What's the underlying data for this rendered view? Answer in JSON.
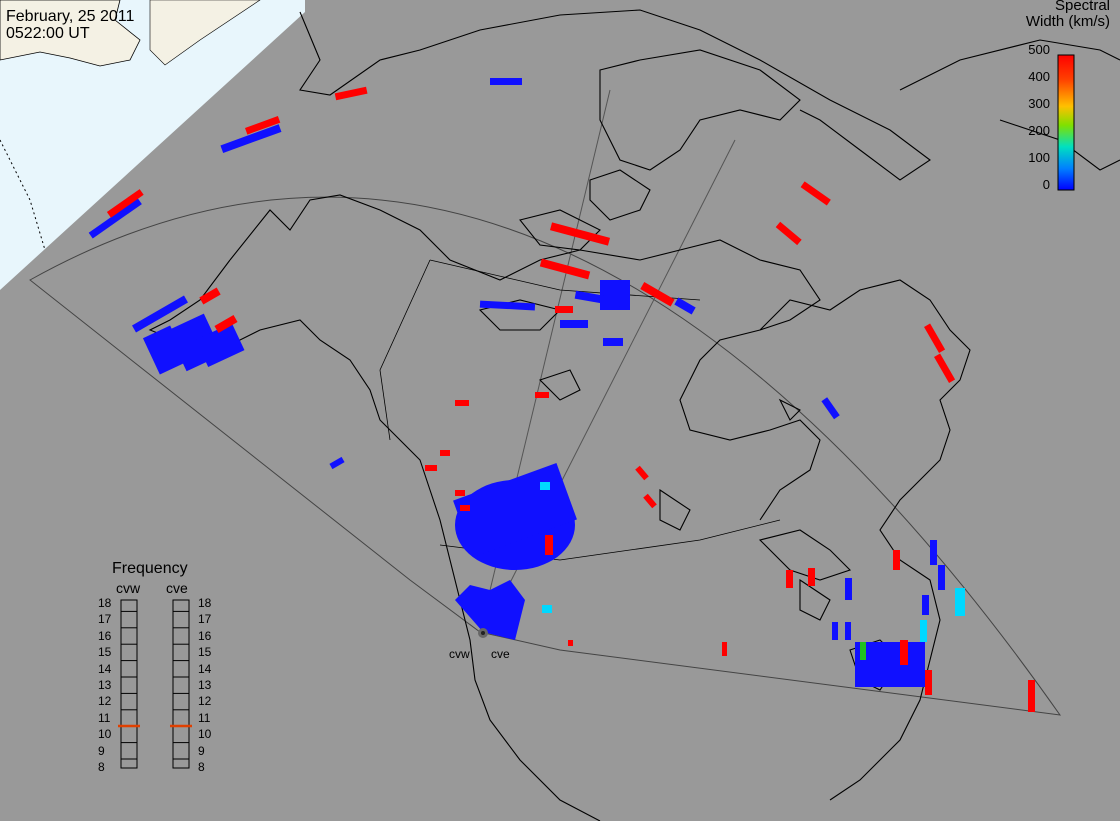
{
  "header": {
    "date": "February, 25 2011",
    "time": "0522:00 UT"
  },
  "colorbar": {
    "title_line1": "Spectral",
    "title_line2": "Width (km/s)",
    "ticks": [
      "500",
      "400",
      "300",
      "200",
      "100",
      "0"
    ],
    "colors": [
      "#ff0000",
      "#ff5a00",
      "#ffb000",
      "#d8d800",
      "#00cc00",
      "#00e0e0",
      "#0090ff",
      "#0000ff"
    ]
  },
  "frequency_panel": {
    "title": "Frequency",
    "radars": [
      {
        "code": "cvw",
        "selected_mhz": 10.8
      },
      {
        "code": "cve",
        "selected_mhz": 10.8
      }
    ],
    "scale": [
      "18",
      "17",
      "16",
      "15",
      "14",
      "13",
      "12",
      "11",
      "10",
      "9",
      "8"
    ]
  },
  "site_labels": [
    "cvw",
    "cve"
  ],
  "colors": {
    "ocean": "#999999",
    "night_land": "#f4f1e4",
    "day_side": "#e6f5fb",
    "scatter_low": "#1010ff",
    "scatter_high": "#ff0000",
    "scatter_mid": "#00d8ff",
    "scatter_green": "#20c020"
  }
}
